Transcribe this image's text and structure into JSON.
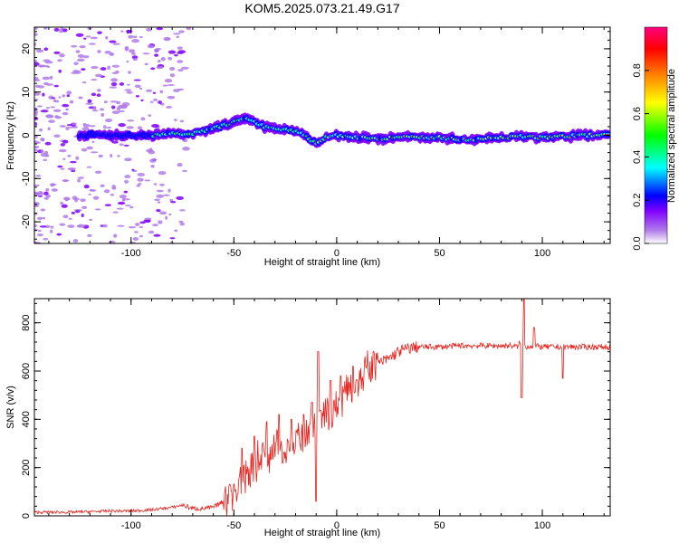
{
  "title": "KOM5.2025.073.21.49.G17",
  "chart_data": [
    {
      "type": "heatmap",
      "xlabel": "Height of straight line (km)",
      "ylabel": "Frequency (Hz)",
      "xlim": [
        -147,
        133
      ],
      "ylim": [
        -25,
        25
      ],
      "xticks": [
        -100,
        -50,
        0,
        50,
        100
      ],
      "yticks": [
        -20,
        -10,
        0,
        10,
        20
      ],
      "xtick_labels": [
        "-100",
        "-50",
        "0",
        "50",
        "100"
      ],
      "ytick_labels": [
        "-20",
        "-10",
        "0",
        "10",
        "20"
      ],
      "colorbar": {
        "label": "Normalized spectral amplitude",
        "range": [
          0,
          1
        ],
        "ticks": [
          0.0,
          0.2,
          0.4,
          0.6,
          0.8
        ],
        "tick_labels": [
          "0.0",
          "0.2",
          "0.4",
          "0.6",
          "0.8"
        ],
        "colors": [
          "#ffffff",
          "#b07de8",
          "#8000ff",
          "#0000ff",
          "#00ffff",
          "#00ff00",
          "#ffff00",
          "#ff8000",
          "#ff0000",
          "#ff0080"
        ]
      },
      "ridge": {
        "x": [
          -120,
          -100,
          -90,
          -80,
          -70,
          -60,
          -50,
          -45,
          -40,
          -35,
          -30,
          -25,
          -20,
          -15,
          -10,
          -5,
          0,
          10,
          20,
          30,
          40,
          50,
          60,
          70,
          80,
          90,
          100,
          110,
          120,
          133
        ],
        "freq": [
          0,
          0,
          0,
          0.5,
          0.3,
          1.5,
          3,
          4,
          3,
          2,
          1.5,
          1.5,
          1,
          0,
          -2,
          -0.5,
          0,
          -0.5,
          -0.8,
          -0.5,
          -0.5,
          -0.5,
          -1,
          -0.8,
          -0.5,
          -0.3,
          -0.5,
          -0.3,
          0,
          0
        ]
      }
    },
    {
      "type": "line",
      "xlabel": "Height of straight line (km)",
      "ylabel": "SNR (v/v)",
      "xlim": [
        -147,
        133
      ],
      "ylim": [
        0,
        900
      ],
      "xticks": [
        -100,
        -50,
        0,
        50,
        100
      ],
      "yticks": [
        0,
        200,
        400,
        600,
        800
      ],
      "xtick_labels": [
        "-100",
        "-50",
        "0",
        "50",
        "100"
      ],
      "ytick_labels": [
        "0",
        "200",
        "400",
        "600",
        "800"
      ],
      "color": "#e8231e",
      "series": [
        {
          "name": "SNR",
          "x": [
            -147,
            -130,
            -110,
            -100,
            -90,
            -80,
            -75,
            -70,
            -65,
            -60,
            -55,
            -50,
            -45,
            -40,
            -35,
            -30,
            -25,
            -20,
            -15,
            -12,
            -10,
            -8,
            -5,
            0,
            5,
            10,
            15,
            20,
            25,
            30,
            35,
            40,
            50,
            60,
            70,
            80,
            85,
            88,
            90,
            92,
            95,
            100,
            105,
            110,
            115,
            120,
            133
          ],
          "values": [
            15,
            15,
            20,
            20,
            25,
            35,
            45,
            30,
            30,
            35,
            60,
            100,
            160,
            220,
            260,
            280,
            290,
            300,
            330,
            360,
            340,
            380,
            430,
            460,
            530,
            560,
            600,
            630,
            650,
            680,
            695,
            700,
            700,
            705,
            705,
            705,
            705,
            700,
            730,
            700,
            705,
            700,
            700,
            700,
            700,
            700,
            700
          ],
          "spikes": [
            {
              "x": -52,
              "value": 130
            },
            {
              "x": -46,
              "value": 280
            },
            {
              "x": -40,
              "value": 330
            },
            {
              "x": -34,
              "value": 390
            },
            {
              "x": -28,
              "value": 420
            },
            {
              "x": -22,
              "value": 400
            },
            {
              "x": -16,
              "value": 420
            },
            {
              "x": -12,
              "value": 470
            },
            {
              "x": -9,
              "value": 680
            },
            {
              "x": -10,
              "value": 60
            },
            {
              "x": -3,
              "value": 560
            },
            {
              "x": 2,
              "value": 580
            },
            {
              "x": 8,
              "value": 620
            },
            {
              "x": 90,
              "value": 490
            },
            {
              "x": 91,
              "value": 915
            },
            {
              "x": 96,
              "value": 780
            },
            {
              "x": 110,
              "value": 570
            }
          ]
        }
      ]
    }
  ]
}
